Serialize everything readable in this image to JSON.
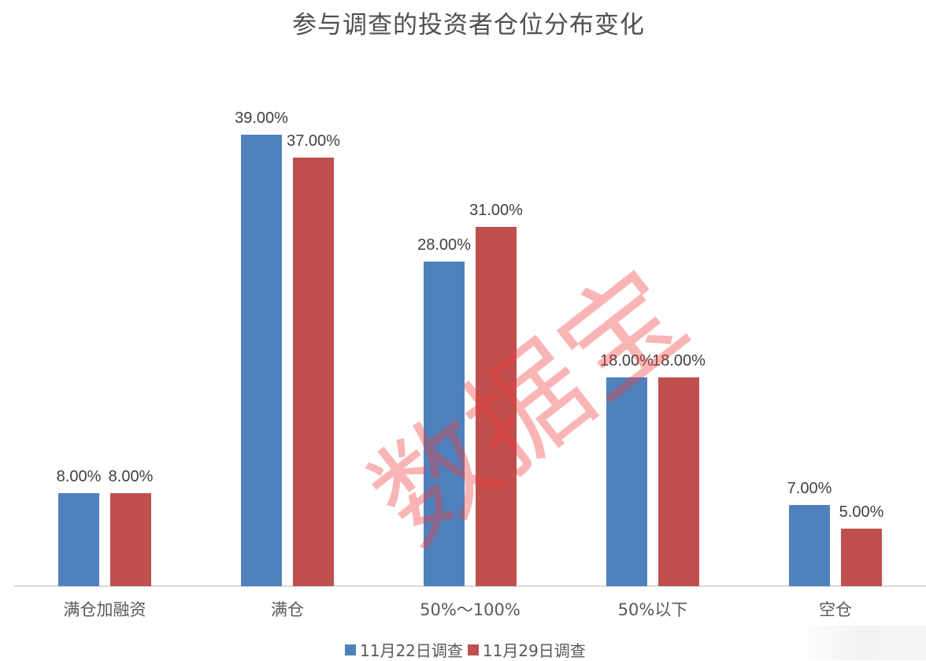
{
  "chart_data": {
    "type": "bar",
    "title": "参与调查的投资者仓位分布变化",
    "xlabel": "",
    "ylabel": "",
    "ylim": [
      0,
      40
    ],
    "grid": false,
    "legend_position": "bottom",
    "categories": [
      "满仓加融资",
      "满仓",
      "50%～100%",
      "50%以下",
      "空仓"
    ],
    "series": [
      {
        "name": "11月22日调查",
        "color": "#4f81bd",
        "values": [
          8,
          39,
          28,
          18,
          7
        ],
        "labels": [
          "8.00%",
          "39.00%",
          "28.00%",
          "18.00%",
          "7.00%"
        ]
      },
      {
        "name": "11月29日调查",
        "color": "#c0504d",
        "values": [
          8,
          37,
          31,
          18,
          5
        ],
        "labels": [
          "8.00%",
          "37.00%",
          "31.00%",
          "18.00%",
          "5.00%"
        ]
      }
    ]
  },
  "watermark": "数据宝"
}
